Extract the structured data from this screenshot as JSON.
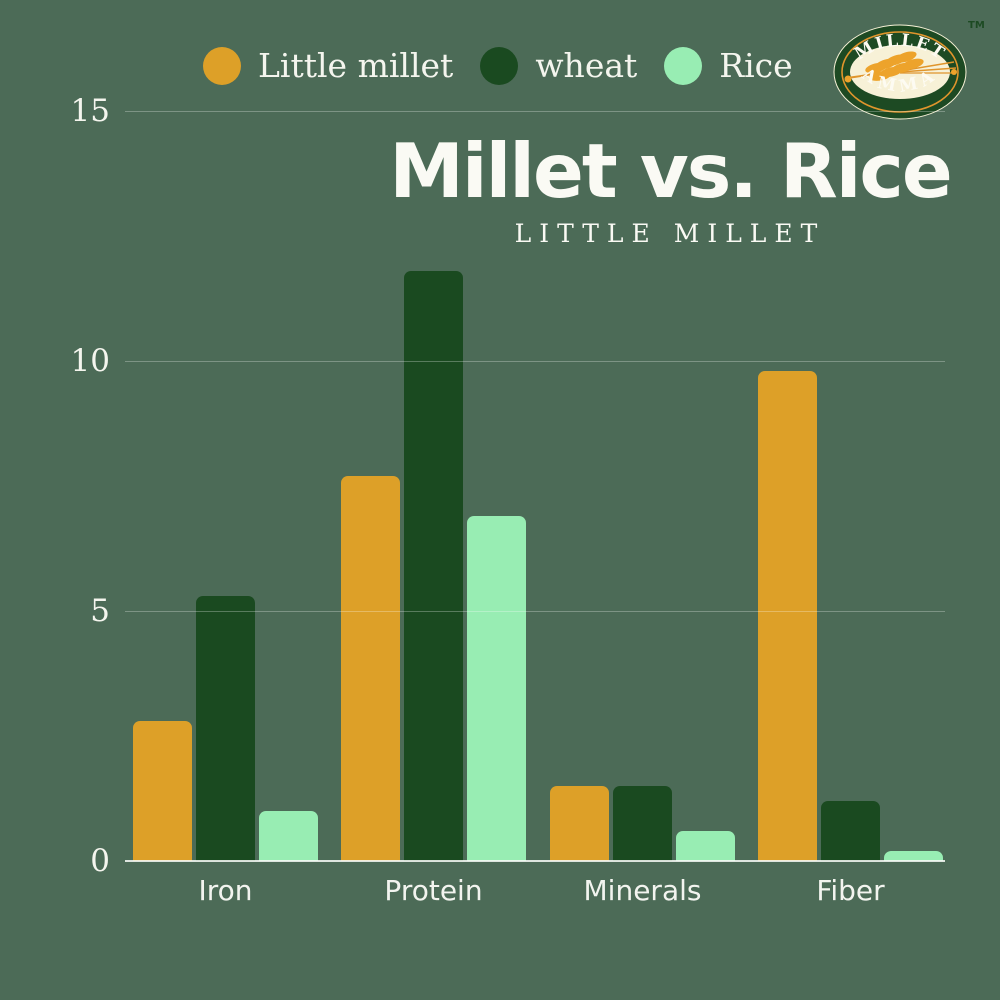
{
  "page": {
    "background_color": "#4C6B57"
  },
  "logo": {
    "top_text": "MILLET",
    "bottom_text": "AMMA",
    "trademark": "TM",
    "oval_color": "#1D4A23",
    "ring_color": "#E0952C",
    "inner_color": "#F7F1D7",
    "wheat_color": "#EDA32B"
  },
  "chart_data": {
    "type": "bar",
    "title": "Millet vs. Rice",
    "subtitle": "LITTLE MILLET",
    "categories": [
      "Iron",
      "Protein",
      "Minerals",
      "Fiber"
    ],
    "series": [
      {
        "name": "Little millet",
        "color": "#DDA028",
        "values": [
          2.8,
          7.7,
          1.5,
          9.8
        ]
      },
      {
        "name": "wheat",
        "color": "#1A4A20",
        "values": [
          5.3,
          11.8,
          1.5,
          1.2
        ]
      },
      {
        "name": "Rice",
        "color": "#98EDB3",
        "values": [
          1.0,
          6.9,
          0.6,
          0.2
        ]
      }
    ],
    "xlabel": "",
    "ylabel": "",
    "ylim": [
      0,
      15
    ],
    "yticks": [
      0,
      5,
      10,
      15
    ],
    "grid": true,
    "legend_position": "top",
    "text_color": "#F4F5EE"
  }
}
